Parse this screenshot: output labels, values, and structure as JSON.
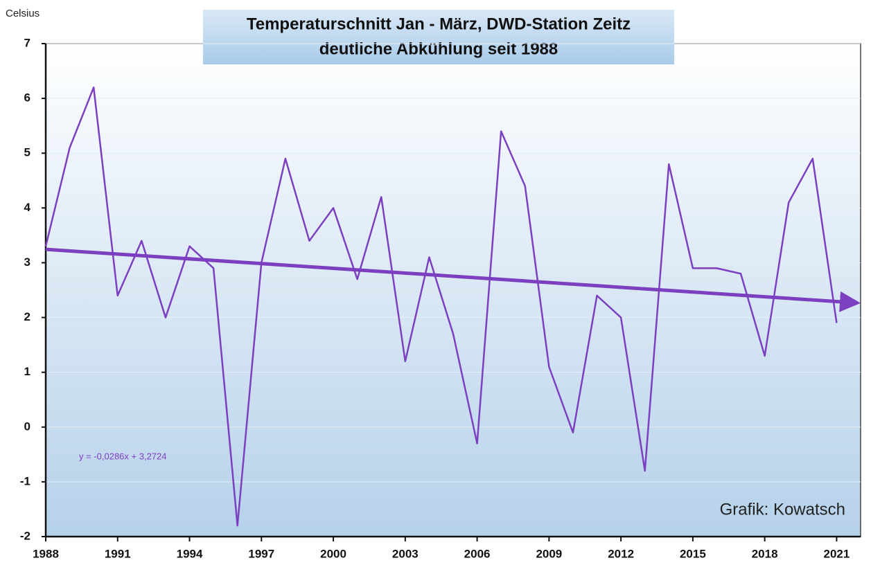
{
  "chart_data": {
    "type": "line",
    "title": "Temperaturschnitt Jan - März, DWD-Station Zeitz",
    "subtitle": "deutliche Abkühlung seit 1988",
    "y_label": "Celsius",
    "annotation": "Grafik: Kowatsch",
    "x": [
      1988,
      1989,
      1990,
      1991,
      1992,
      1993,
      1994,
      1995,
      1996,
      1997,
      1998,
      1999,
      2000,
      2001,
      2002,
      2003,
      2004,
      2005,
      2006,
      2007,
      2008,
      2009,
      2010,
      2011,
      2012,
      2013,
      2014,
      2015,
      2016,
      2017,
      2018,
      2019,
      2020,
      2021
    ],
    "series": [
      {
        "name": "Temperaturschnitt Jan - März",
        "color": "#7b3fc0",
        "values": [
          3.3,
          5.1,
          6.2,
          2.4,
          3.4,
          2.0,
          3.3,
          2.9,
          -1.8,
          3.0,
          4.9,
          3.4,
          4.0,
          2.7,
          4.2,
          1.2,
          3.1,
          1.7,
          -0.3,
          5.4,
          4.4,
          1.1,
          -0.1,
          2.4,
          2.0,
          -0.8,
          4.8,
          2.9,
          2.9,
          2.8,
          1.3,
          4.1,
          4.9,
          1.9
        ]
      }
    ],
    "trendline": {
      "label": "y = -0,0286x + 3,2724",
      "slope": -0.0286,
      "intercept": 3.2724,
      "color": "#7b3fc0"
    },
    "xlim": [
      1988,
      2022
    ],
    "xticks": [
      1988,
      1991,
      1994,
      1997,
      2000,
      2003,
      2006,
      2009,
      2012,
      2015,
      2018,
      2021
    ],
    "ylim": [
      -2,
      7
    ],
    "yticks": [
      -2,
      -1,
      0,
      1,
      2,
      3,
      4,
      5,
      6,
      7
    ],
    "grid": true
  }
}
